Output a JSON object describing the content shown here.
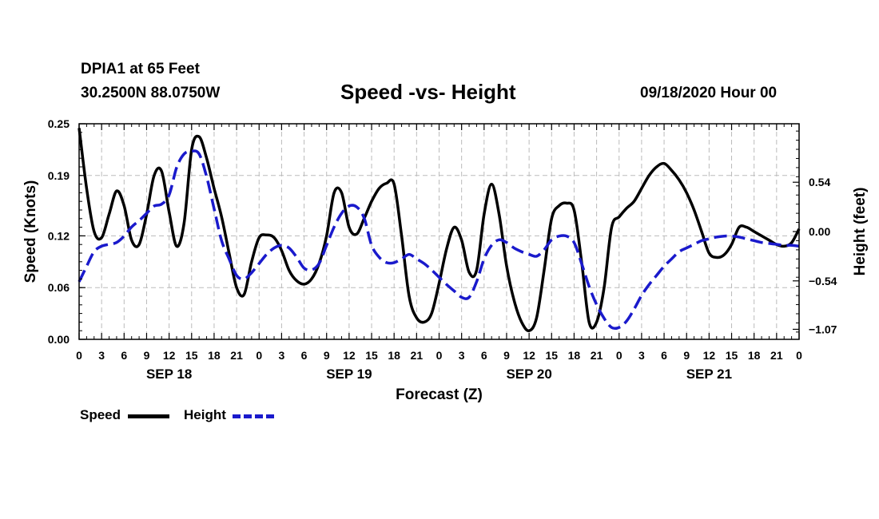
{
  "header": {
    "station": "DPIA1 at 65 Feet",
    "coords": "30.2500N 88.0750W",
    "timestamp": "09/18/2020 Hour 00"
  },
  "legend": {
    "speed_label": "Speed",
    "height_label": "Height"
  },
  "colors": {
    "speed": "#000000",
    "height": "#1a1acc",
    "grid": "#bbbbbb"
  },
  "chart_data": {
    "type": "line",
    "title": "Speed -vs- Height",
    "xlabel": "Forecast (Z)",
    "ylabel": "Speed (Knots)",
    "y2label": "Height (feet)",
    "xlim": [
      0,
      96
    ],
    "ylim": [
      0,
      0.25
    ],
    "y2lim": [
      -1.18,
      1.18
    ],
    "grid": true,
    "legend": "bottom-left",
    "x_tick_values": [
      0,
      3,
      6,
      9,
      12,
      15,
      18,
      21,
      24,
      27,
      30,
      33,
      36,
      39,
      42,
      45,
      48,
      51,
      54,
      57,
      60,
      63,
      66,
      69,
      72,
      75,
      78,
      81,
      84,
      87,
      90,
      93,
      96
    ],
    "x_tick_labels": [
      "0",
      "3",
      "6",
      "9",
      "12",
      "15",
      "18",
      "21",
      "0",
      "3",
      "6",
      "9",
      "12",
      "15",
      "18",
      "21",
      "0",
      "3",
      "6",
      "9",
      "12",
      "15",
      "18",
      "21",
      "0",
      "3",
      "6",
      "9",
      "12",
      "15",
      "18",
      "21",
      "0"
    ],
    "date_labels": [
      {
        "x": 12,
        "label": "SEP 18"
      },
      {
        "x": 36,
        "label": "SEP 19"
      },
      {
        "x": 60,
        "label": "SEP 20"
      },
      {
        "x": 84,
        "label": "SEP 21"
      }
    ],
    "y_ticks": [
      0,
      0.06,
      0.12,
      0.19,
      0.25
    ],
    "y_tick_labels": [
      "0.00",
      "0.06",
      "0.12",
      "0.19",
      "0.25"
    ],
    "y2_ticks": [
      0.54,
      0.0,
      -0.54,
      -1.07
    ],
    "y2_tick_labels": [
      "0.54",
      "0.00",
      "−0.54",
      "−1.07"
    ],
    "series": [
      {
        "name": "Speed",
        "axis": "left",
        "x": [
          0,
          1,
          2,
          3,
          4,
          5,
          6,
          7,
          8,
          9,
          10,
          11,
          12,
          13,
          14,
          15,
          16,
          17,
          18,
          19,
          20,
          21,
          22,
          23,
          24,
          25,
          26,
          27,
          28,
          29,
          30,
          31,
          32,
          33,
          34,
          35,
          36,
          37,
          38,
          39,
          40,
          41,
          42,
          43,
          44,
          45,
          46,
          47,
          48,
          49,
          50,
          51,
          52,
          53,
          54,
          55,
          56,
          57,
          58,
          59,
          60,
          61,
          62,
          63,
          64,
          65,
          66,
          67,
          68,
          69,
          70,
          71,
          72,
          73,
          74,
          75,
          76,
          77,
          78,
          79,
          80,
          81,
          82,
          83,
          84,
          85,
          86,
          87,
          88,
          89,
          90,
          91,
          92,
          93,
          94,
          95,
          96
        ],
        "values": [
          0.245,
          0.175,
          0.125,
          0.118,
          0.145,
          0.172,
          0.155,
          0.115,
          0.11,
          0.145,
          0.19,
          0.195,
          0.148,
          0.108,
          0.135,
          0.22,
          0.235,
          0.21,
          0.175,
          0.142,
          0.1,
          0.06,
          0.052,
          0.09,
          0.118,
          0.121,
          0.118,
          0.103,
          0.08,
          0.068,
          0.064,
          0.07,
          0.088,
          0.12,
          0.17,
          0.17,
          0.13,
          0.122,
          0.14,
          0.16,
          0.175,
          0.181,
          0.18,
          0.12,
          0.05,
          0.025,
          0.02,
          0.03,
          0.065,
          0.105,
          0.13,
          0.115,
          0.078,
          0.08,
          0.145,
          0.18,
          0.145,
          0.085,
          0.045,
          0.02,
          0.01,
          0.025,
          0.08,
          0.14,
          0.155,
          0.158,
          0.15,
          0.09,
          0.02,
          0.02,
          0.06,
          0.13,
          0.142,
          0.152,
          0.16,
          0.175,
          0.19,
          0.2,
          0.204,
          0.196,
          0.185,
          0.17,
          0.15,
          0.125,
          0.1,
          0.095,
          0.098,
          0.11,
          0.13,
          0.13,
          0.125,
          0.12,
          0.115,
          0.11,
          0.108,
          0.112,
          0.128
        ]
      },
      {
        "name": "Height",
        "axis": "right",
        "x": [
          0,
          1,
          2,
          3,
          4,
          5,
          6,
          7,
          8,
          9,
          10,
          11,
          12,
          13,
          14,
          15,
          16,
          17,
          18,
          19,
          20,
          21,
          22,
          23,
          24,
          25,
          26,
          27,
          28,
          29,
          30,
          31,
          32,
          33,
          34,
          35,
          36,
          37,
          38,
          39,
          40,
          41,
          42,
          43,
          44,
          45,
          46,
          47,
          48,
          49,
          50,
          51,
          52,
          53,
          54,
          55,
          56,
          57,
          58,
          59,
          60,
          61,
          62,
          63,
          64,
          65,
          66,
          67,
          68,
          69,
          70,
          71,
          72,
          73,
          74,
          75,
          76,
          77,
          78,
          79,
          80,
          81,
          82,
          83,
          84,
          85,
          86,
          87,
          88,
          89,
          90,
          91,
          92,
          93,
          94,
          95,
          96
        ],
        "values": [
          -0.55,
          -0.38,
          -0.22,
          -0.16,
          -0.14,
          -0.12,
          -0.05,
          0.05,
          0.12,
          0.2,
          0.28,
          0.3,
          0.4,
          0.7,
          0.85,
          0.88,
          0.85,
          0.6,
          0.25,
          -0.1,
          -0.3,
          -0.48,
          -0.52,
          -0.45,
          -0.35,
          -0.25,
          -0.18,
          -0.15,
          -0.18,
          -0.28,
          -0.4,
          -0.42,
          -0.35,
          -0.15,
          0.05,
          0.2,
          0.28,
          0.27,
          0.15,
          -0.15,
          -0.28,
          -0.34,
          -0.34,
          -0.3,
          -0.25,
          -0.3,
          -0.35,
          -0.42,
          -0.5,
          -0.58,
          -0.65,
          -0.72,
          -0.72,
          -0.55,
          -0.3,
          -0.15,
          -0.09,
          -0.12,
          -0.18,
          -0.22,
          -0.25,
          -0.27,
          -0.2,
          -0.09,
          -0.05,
          -0.05,
          -0.12,
          -0.35,
          -0.6,
          -0.8,
          -0.95,
          -1.05,
          -1.05,
          -0.98,
          -0.85,
          -0.7,
          -0.58,
          -0.48,
          -0.38,
          -0.3,
          -0.22,
          -0.18,
          -0.14,
          -0.1,
          -0.08,
          -0.06,
          -0.05,
          -0.05,
          -0.06,
          -0.08,
          -0.1,
          -0.12,
          -0.13,
          -0.14,
          -0.15,
          -0.15,
          -0.16
        ]
      }
    ]
  }
}
